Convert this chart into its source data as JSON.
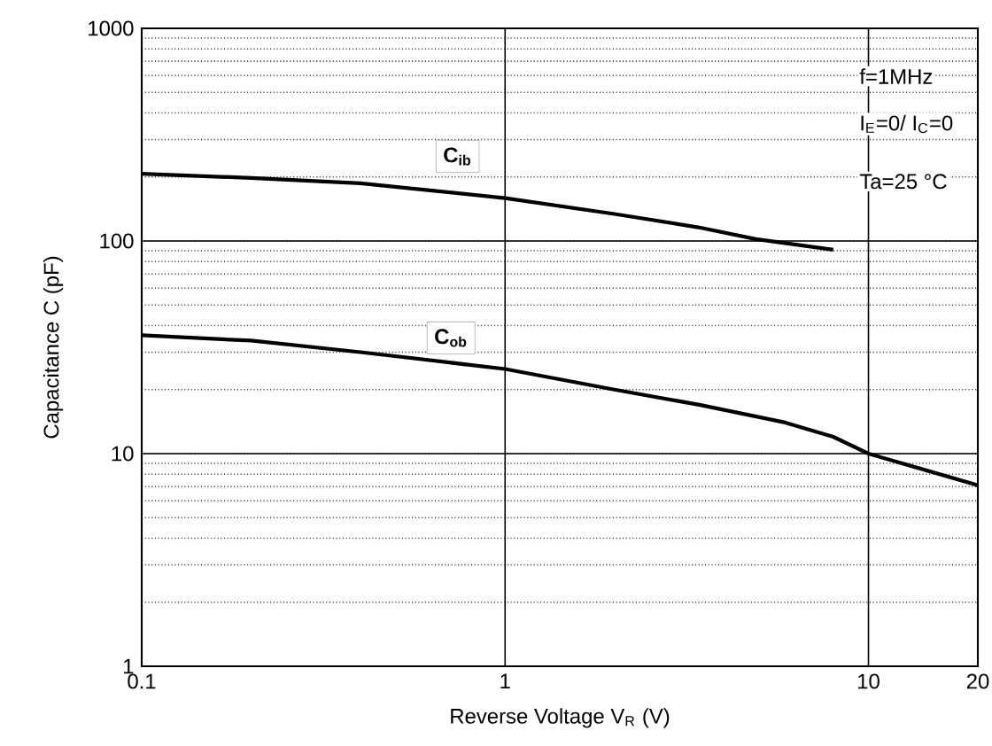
{
  "chart_data": {
    "type": "line",
    "xlabel": "Reverse Voltage    V$_{R}$    (V)",
    "ylabel": "Capacitance  C  (pF)",
    "xlim": [
      0.1,
      20
    ],
    "ylim": [
      1,
      1000
    ],
    "xticks": [
      0.1,
      1,
      10,
      20
    ],
    "yticks": [
      1,
      10,
      100,
      1000
    ],
    "log": "xy",
    "grid": true,
    "marker": "none",
    "line_style": "solid",
    "series": [
      {
        "color": "#000000",
        "x": [
          0.1,
          0.2,
          0.4,
          1,
          2,
          3.4,
          4.9,
          8
        ],
        "values": [
          207,
          198,
          187,
          159,
          134,
          116,
          102,
          91
        ]
      },
      {
        "color": "#000000",
        "x": [
          0.1,
          0.2,
          0.4,
          1,
          2,
          3.4,
          5.9,
          8,
          10,
          20
        ],
        "values": [
          36,
          34,
          30,
          25,
          20,
          17,
          14,
          12,
          10,
          7.1
        ]
      }
    ],
    "annotations": [
      {
        "text": "C$_{ib}$",
        "x": 0.74,
        "y": 250
      },
      {
        "text": "C$_{ob}$",
        "x": 0.71,
        "y": 35
      },
      "f=1MHz",
      "I$_{E}$=0/ I$_{C}$=0",
      "Ta=25 °C"
    ]
  }
}
